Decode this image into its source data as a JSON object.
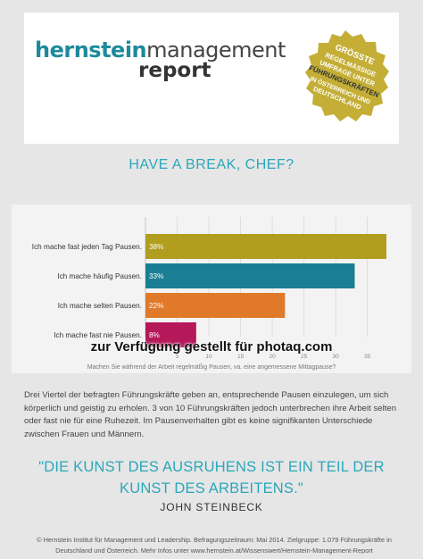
{
  "header": {
    "brand_bold": "hernstein",
    "brand_light": "management",
    "report": "report",
    "seal_lines": [
      "GRÖSSTE",
      "REGELMÄSSIGE",
      "UMFRAGE UNTER",
      "FÜHRUNGSKRÄFTEN",
      "IN ÖSTERREICH UND",
      "DEUTSCHLAND"
    ],
    "seal_color": "#c4ae36"
  },
  "headline": "HAVE A BREAK, CHEF?",
  "chart_data": {
    "type": "bar",
    "orientation": "horizontal",
    "categories": [
      "Ich mache fast jeden Tag Pausen.",
      "Ich mache häufig Pausen.",
      "Ich mache selten Pausen.",
      "Ich mache fast nie Pausen."
    ],
    "values": [
      38,
      33,
      22,
      8
    ],
    "value_labels": [
      "38%",
      "33%",
      "22%",
      "8%"
    ],
    "colors": [
      "#b19d1e",
      "#1b7f93",
      "#e07a2a",
      "#b5195a"
    ],
    "xlim": [
      0,
      38
    ],
    "xticks": [
      5,
      10,
      15,
      20,
      25,
      30,
      35
    ],
    "xlabel": "Machen Sie während der Arbeit regelmäßig Pausen, va. eine angemessene Mittagpause?",
    "grid": true
  },
  "watermark": "zur Verfügung gestellt für photaq.com",
  "body_text": "Drei Viertel der befragten Führungskräfte geben an, entsprechende Pausen einzulegen, um sich körperlich und geistig zu erholen. 3 von 10 Führungskräften jedoch unterbrechen ihre Arbeit selten oder fast nie für eine Ruhezeit. Im Pausenverhalten gibt es keine signifikanten Unterschiede zwischen Frauen und Männern.",
  "quote": {
    "line1": "\"DIE KUNST DES AUSRUHENS IST EIN TEIL DER",
    "line2": "KUNST DES ARBEITENS.\"",
    "author": "JOHN STEINBECK"
  },
  "footer": {
    "line1": "© Hernstein Institut für Management und Leadership. Befragungszeitraum: Mai 2014. Zielgruppe: 1.079 Führungskräfte in",
    "line2": "Deutschland und Österreich. Mehr Infos unter www.hernstein.at/Wissenswert/Hernstein-Management-Report"
  }
}
